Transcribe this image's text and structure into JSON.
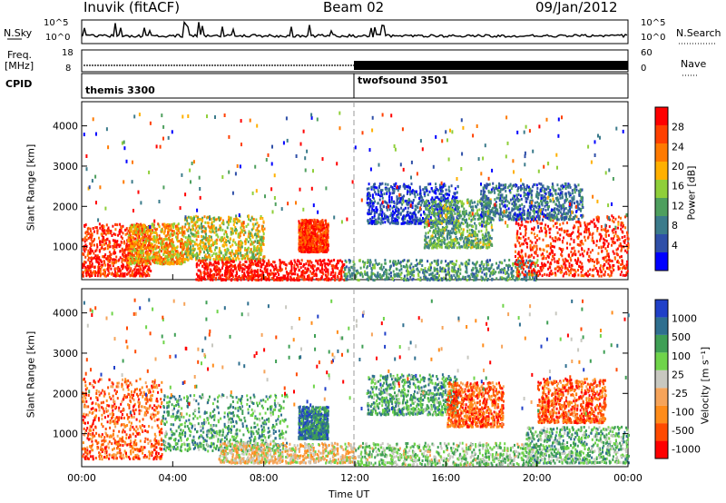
{
  "header": {
    "station": "Inuvik (fitACF)",
    "beam": "Beam 02",
    "date": "09/Jan/2012"
  },
  "panels": {
    "nsky": {
      "left_label": "N.Sky",
      "right_label": "N.Search",
      "ticks_left": [
        "10^5",
        "10^0"
      ],
      "ticks_right": [
        "10^5",
        "10^0"
      ]
    },
    "freq": {
      "label_line1": "Freq.",
      "label_line2": "[MHz]",
      "right_label": "Nave",
      "ticks_left": [
        "18",
        "8"
      ],
      "ticks_right": [
        "60",
        "0"
      ]
    },
    "cpid": {
      "label": "CPID",
      "programs": [
        {
          "name": "themis 3300",
          "start_hour": 0
        },
        {
          "name": "twofsound 3501",
          "start_hour": 12
        }
      ]
    }
  },
  "colors": {
    "power_scale": [
      "#0000ff",
      "#2f4fa8",
      "#3b7b8b",
      "#4e9f5e",
      "#8fcf3a",
      "#ffb000",
      "#ff7a00",
      "#ff4000",
      "#ff0000"
    ],
    "velocity_scale": [
      "#ff0000",
      "#ff4a00",
      "#ff8c1a",
      "#f6a45a",
      "#c8c8c0",
      "#6fd44a",
      "#3f9f55",
      "#2f6f8f",
      "#2040c8"
    ]
  },
  "chart_data": [
    {
      "type": "heatmap",
      "panel": "power",
      "ylabel": "Slant Range [km]",
      "xlabel": "Time UT",
      "xlim": [
        0,
        24
      ],
      "ylim": [
        180,
        4600
      ],
      "xticks": [
        "00:00",
        "04:00",
        "08:00",
        "12:00",
        "16:00",
        "20:00",
        "00:00"
      ],
      "yticks": [
        1000,
        2000,
        3000,
        4000
      ],
      "colorbar": {
        "label": "Power [dB]",
        "ticks": [
          "28",
          "24",
          "20",
          "16",
          "12",
          "8",
          "4"
        ]
      },
      "blobs": [
        {
          "t": [
            0,
            3
          ],
          "r": [
            300,
            1600
          ],
          "value": 0.9
        },
        {
          "t": [
            2,
            4.5
          ],
          "r": [
            600,
            1600
          ],
          "value": 0.65
        },
        {
          "t": [
            4.5,
            8
          ],
          "r": [
            700,
            1800
          ],
          "value": 0.55
        },
        {
          "t": [
            5,
            11.5
          ],
          "r": [
            200,
            700
          ],
          "value": 0.95
        },
        {
          "t": [
            9.5,
            10.8
          ],
          "r": [
            900,
            1700
          ],
          "value": 0.85
        },
        {
          "t": [
            11.5,
            20
          ],
          "r": [
            200,
            700
          ],
          "value": 0.35
        },
        {
          "t": [
            12.5,
            16.5
          ],
          "r": [
            1600,
            2600
          ],
          "value": 0.15
        },
        {
          "t": [
            15,
            18
          ],
          "r": [
            1000,
            2200
          ],
          "value": 0.4
        },
        {
          "t": [
            19,
            24
          ],
          "r": [
            300,
            1800
          ],
          "value": 0.9
        },
        {
          "t": [
            17.5,
            22
          ],
          "r": [
            1700,
            2600
          ],
          "value": 0.25
        }
      ]
    },
    {
      "type": "heatmap",
      "panel": "velocity",
      "ylabel": "Slant Range [km]",
      "xlabel": "Time UT",
      "xlim": [
        0,
        24
      ],
      "ylim": [
        180,
        4600
      ],
      "xticks": [
        "00:00",
        "04:00",
        "08:00",
        "12:00",
        "16:00",
        "20:00",
        "00:00"
      ],
      "yticks": [
        1000,
        2000,
        3000,
        4000
      ],
      "colorbar": {
        "label": "Velocity [m s⁻¹]",
        "ticks": [
          "1000",
          "500",
          "100",
          "25",
          "-25",
          "-100",
          "-500",
          "-1000"
        ]
      },
      "blobs": [
        {
          "t": [
            0,
            3.5
          ],
          "r": [
            400,
            2400
          ],
          "value": 0.2
        },
        {
          "t": [
            3.5,
            9
          ],
          "r": [
            600,
            2000
          ],
          "value": 0.7
        },
        {
          "t": [
            6,
            12
          ],
          "r": [
            300,
            800
          ],
          "value": 0.45
        },
        {
          "t": [
            9.5,
            10.8
          ],
          "r": [
            900,
            1700
          ],
          "value": 0.8
        },
        {
          "t": [
            12.5,
            16.5
          ],
          "r": [
            1500,
            2500
          ],
          "value": 0.7
        },
        {
          "t": [
            12,
            20
          ],
          "r": [
            250,
            800
          ],
          "value": 0.6
        },
        {
          "t": [
            16,
            18.5
          ],
          "r": [
            1200,
            2300
          ],
          "value": 0.2
        },
        {
          "t": [
            20,
            23
          ],
          "r": [
            1300,
            2400
          ],
          "value": 0.2
        },
        {
          "t": [
            19.5,
            24
          ],
          "r": [
            300,
            1200
          ],
          "value": 0.65
        }
      ]
    }
  ],
  "axis": {
    "time_label": "Time UT"
  }
}
